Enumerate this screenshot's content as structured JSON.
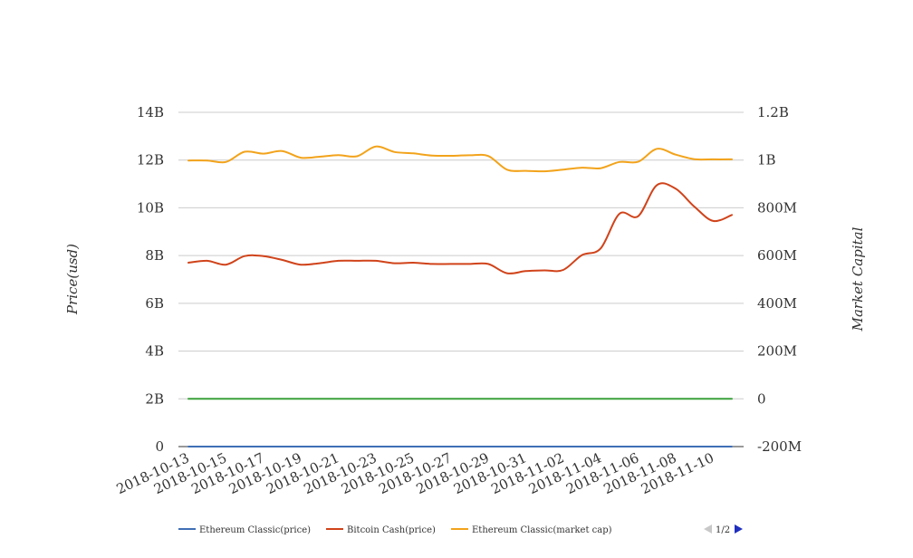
{
  "chart_data": {
    "type": "line",
    "x": [
      "2018-10-13",
      "2018-10-14",
      "2018-10-15",
      "2018-10-16",
      "2018-10-17",
      "2018-10-18",
      "2018-10-19",
      "2018-10-20",
      "2018-10-21",
      "2018-10-22",
      "2018-10-23",
      "2018-10-24",
      "2018-10-25",
      "2018-10-26",
      "2018-10-27",
      "2018-10-28",
      "2018-10-29",
      "2018-10-30",
      "2018-10-31",
      "2018-11-01",
      "2018-11-02",
      "2018-11-03",
      "2018-11-04",
      "2018-11-05",
      "2018-11-06",
      "2018-11-07",
      "2018-11-08",
      "2018-11-09",
      "2018-11-10",
      "2018-11-11"
    ],
    "x_tick_labels": [
      "2018-10-13",
      "2018-10-15",
      "2018-10-17",
      "2018-10-19",
      "2018-10-21",
      "2018-10-23",
      "2018-10-25",
      "2018-10-27",
      "2018-10-29",
      "2018-10-31",
      "2018-11-02",
      "2018-11-04",
      "2018-11-06",
      "2018-11-08",
      "2018-11-10"
    ],
    "y_left": {
      "label": "Price(usd)",
      "ylim": [
        0,
        14000000000
      ],
      "ticks": [
        "0",
        "2B",
        "4B",
        "6B",
        "8B",
        "10B",
        "12B",
        "14B"
      ]
    },
    "y_right": {
      "label": "Market Capital",
      "ylim": [
        -200000000,
        1200000000
      ],
      "ticks": [
        "-200M",
        "0",
        "200M",
        "400M",
        "600M",
        "800M",
        "1B",
        "1.2B"
      ]
    },
    "grid": true,
    "legend_position": "bottom",
    "series": [
      {
        "name": "Ethereum Classic(price)",
        "color": "#3f6fb5",
        "axis": "left",
        "values": [
          10,
          10,
          10,
          10,
          10,
          10,
          10,
          10,
          10,
          10,
          10,
          10,
          10,
          10,
          10,
          10,
          10,
          10,
          10,
          10,
          10,
          10,
          10,
          10,
          10,
          10,
          10,
          10,
          10,
          10
        ]
      },
      {
        "name": "Bitcoin Cash(price)",
        "color": "#d0431a",
        "axis": "left",
        "values": [
          7700000000,
          7780000000,
          7620000000,
          7980000000,
          7980000000,
          7820000000,
          7620000000,
          7680000000,
          7780000000,
          7780000000,
          7780000000,
          7680000000,
          7700000000,
          7650000000,
          7650000000,
          7650000000,
          7650000000,
          7260000000,
          7350000000,
          7380000000,
          7400000000,
          8020000000,
          8300000000,
          9750000000,
          9650000000,
          10950000000,
          10800000000,
          10050000000,
          9450000000,
          9700000000
        ]
      },
      {
        "name": "Ethereum Classic(market cap)",
        "color": "#f2a31b",
        "axis": "left",
        "values": [
          11980000000,
          11980000000,
          11920000000,
          12350000000,
          12270000000,
          12380000000,
          12100000000,
          12140000000,
          12210000000,
          12160000000,
          12570000000,
          12340000000,
          12280000000,
          12190000000,
          12180000000,
          12200000000,
          12170000000,
          11600000000,
          11550000000,
          11530000000,
          11600000000,
          11680000000,
          11660000000,
          11920000000,
          11930000000,
          12470000000,
          12230000000,
          12040000000,
          12030000000,
          12030000000
        ]
      },
      {
        "name": "",
        "color": "#3aa13a",
        "axis": "right",
        "values": [
          0,
          0,
          0,
          0,
          0,
          0,
          0,
          0,
          0,
          0,
          0,
          0,
          0,
          0,
          0,
          0,
          0,
          0,
          0,
          0,
          0,
          0,
          0,
          0,
          0,
          0,
          0,
          0,
          0,
          0
        ]
      }
    ]
  },
  "legend": {
    "page_label": "1/2"
  }
}
